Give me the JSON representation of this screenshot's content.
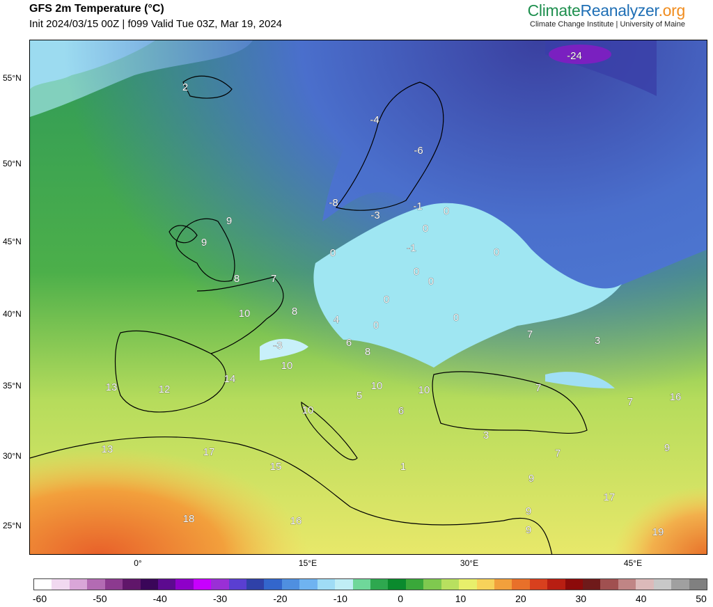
{
  "header": {
    "title": "GFS 2m Temperature (°C)",
    "subtitle": "Init 2024/03/15 00Z | f099 Valid Tue 03Z, Mar 19, 2024"
  },
  "brand": {
    "part1": "Climate",
    "part2": "Reanalyzer",
    "part3": ".org",
    "subtitle": "Climate Change Institute | University of Maine",
    "colors": {
      "climate": "#1e8f4e",
      "reanalyzer": "#1f6fb5",
      "org": "#f08c1e"
    }
  },
  "map": {
    "lat_labels": [
      "55°N",
      "50°N",
      "45°N",
      "40°N",
      "35°N",
      "30°N",
      "25°N"
    ],
    "lon_labels": [
      "0°",
      "15°E",
      "30°E",
      "45°E"
    ],
    "temperature_labels": [
      "-24",
      "2",
      "-4",
      "-6",
      "-8",
      "-3",
      "-1",
      "0",
      "0",
      "0",
      "-1",
      "0",
      "0",
      "0",
      "0",
      "0",
      "0",
      "9",
      "9",
      "8",
      "7",
      "10",
      "8",
      "4",
      "-3",
      "6",
      "8",
      "10",
      "10",
      "14",
      "13",
      "12",
      "5",
      "10",
      "7",
      "6",
      "6",
      "7",
      "3",
      "16",
      "7",
      "3",
      "10",
      "13",
      "17",
      "15",
      "1",
      "3",
      "7",
      "9",
      "9",
      "9",
      "9",
      "17",
      "18",
      "16",
      "19"
    ]
  },
  "colorbar": {
    "labels": [
      "-60",
      "-50",
      "-40",
      "-30",
      "-20",
      "-10",
      "0",
      "10",
      "20",
      "30",
      "40",
      "50"
    ],
    "colors": [
      "#ffffff",
      "#f1d9f0",
      "#d9a6d8",
      "#b36bb3",
      "#8c3a8f",
      "#60166a",
      "#3a0659",
      "#5c0a8f",
      "#8e00c9",
      "#c700ff",
      "#9a2fd6",
      "#5a3fd1",
      "#2f41a8",
      "#3366cc",
      "#4f8fe0",
      "#6fb3f0",
      "#9fdcf5",
      "#c0eef5",
      "#6fd79a",
      "#2ea84f",
      "#0a8a2d",
      "#3aa83a",
      "#7fc94f",
      "#b8e05f",
      "#e8ef6b",
      "#f7d25a",
      "#f2a03c",
      "#e8702a",
      "#d8401e",
      "#b81e12",
      "#8c0a0a",
      "#6f1a1a",
      "#a05050",
      "#c08585",
      "#dcbaba",
      "#c8c8c8",
      "#a0a0a0",
      "#808080"
    ]
  }
}
